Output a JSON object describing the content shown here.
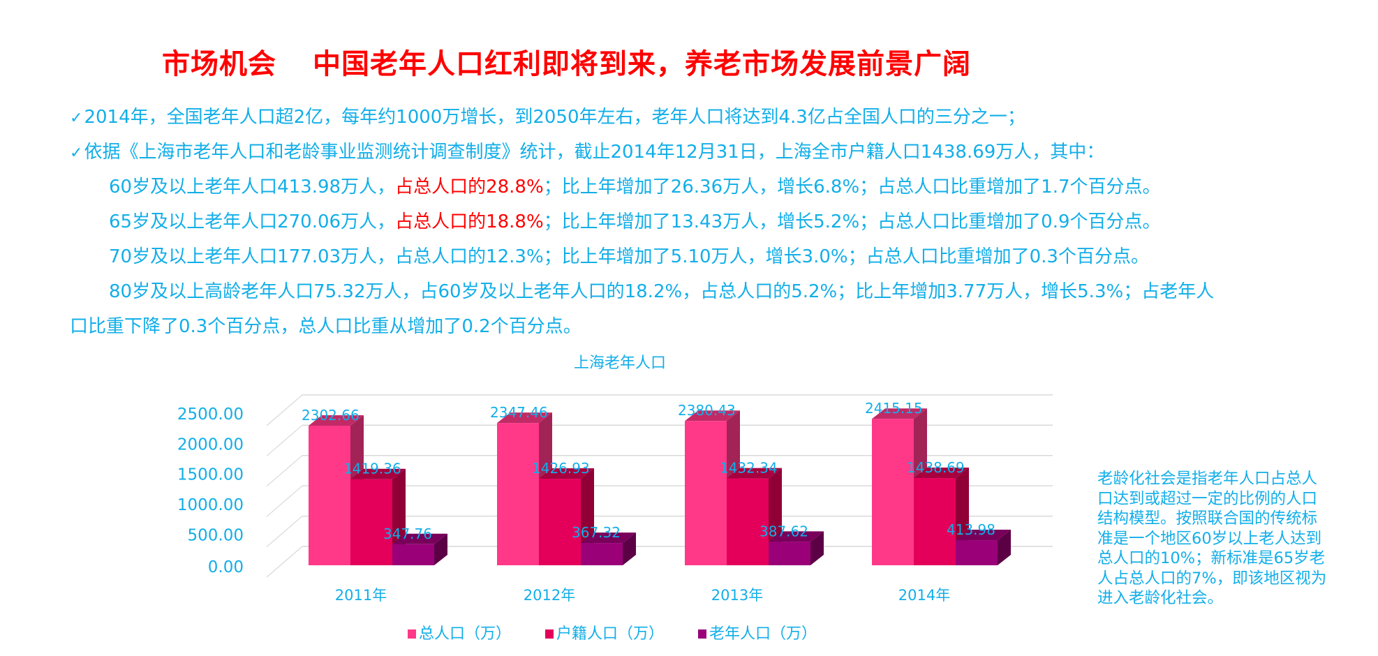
{
  "header": {
    "title_left": "市场机会",
    "title_right": "中国老年人口红利即将到来，养老市场发展前景广阔"
  },
  "body_text": {
    "check_icon": "✓",
    "line1": "2014年，全国老年人口超2亿，每年约1000万增长，到2050年左右，老年人口将达到4.3亿占全国人口的三分之一；",
    "line2": "依据《上海市老年人口和老龄事业监测统计调查制度》统计，截止2014年12月31日，上海全市户籍人口1438.69万人，其中：",
    "line3": {
      "a": "60岁及以上老年人口413.98万人，",
      "red": "占总人口的28.8%",
      "b": "；比上年增加了26.36万人，增长6.8%；占总人口比重增加了1.7个百分点。"
    },
    "line4": {
      "a": "65岁及以上老年人口270.06万人，",
      "red": "占总人口的18.8%",
      "b": "；比上年增加了13.43万人，增长5.2%；占总人口比重增加了0.9个百分点。"
    },
    "line5": "70岁及以上老年人口177.03万人，占总人口的12.3%；比上年增加了5.10万人，增长3.0%；占总人口比重增加了0.3个百分点。",
    "line6": "80岁及以上高龄老年人口75.32万人，占60岁及以上老年人口的18.2%，占总人口的5.2%；比上年增加3.77万人，增长5.3%；占老年人",
    "line7": "口比重下降了0.3个百分点，总人口比重从增加了0.2个百分点。"
  },
  "side_note": {
    "lines": [
      "老龄化社会是指老年人口占总人",
      "口达到或超过一定的比例的人口",
      "结构模型。按照联合国的传统标",
      "准是一个地区60岁以上老人达到",
      "总人口的10%；新标准是65岁老",
      "人占总人口的7%，即该地区视为",
      "进入老龄化社会。"
    ]
  },
  "colors": {
    "title_red": "#ff0000",
    "text_blue": "#12aee8",
    "grid": "#d9d9d9"
  },
  "chart_data": {
    "type": "bar",
    "subtype": "3d-clustered-column",
    "title": "上海老年人口",
    "categories": [
      "2011年",
      "2012年",
      "2013年",
      "2014年"
    ],
    "series": [
      {
        "name": "总人口（万）",
        "values": [
          2302.66,
          2347.46,
          2380.43,
          2415.15
        ],
        "color": "#ff3888",
        "top": "#c22a66",
        "side": "#a22356"
      },
      {
        "name": "户籍人口（万）",
        "values": [
          1419.36,
          1426.93,
          1432.34,
          1438.69
        ],
        "color": "#e4005a",
        "top": "#a8003f",
        "side": "#900036"
      },
      {
        "name": "老年人口（万）",
        "values": [
          347.76,
          367.32,
          387.62,
          413.98
        ],
        "color": "#9a0078",
        "top": "#78005a",
        "side": "#5c0046"
      }
    ],
    "data_labels": [
      [
        "2302.66",
        "2347.46",
        "2380.43",
        "2415.15"
      ],
      [
        "1419.36",
        "1426.93",
        "1432.34",
        "1438.69"
      ],
      [
        "347.76",
        "367.32",
        "387.62",
        "413.98"
      ]
    ],
    "y_ticks": [
      "0.00",
      "500.00",
      "1000.00",
      "1500.00",
      "2000.00",
      "2500.00"
    ],
    "ylim": [
      0,
      2500
    ],
    "xlabel": "",
    "ylabel": "",
    "grid": true,
    "legend_position": "bottom"
  }
}
